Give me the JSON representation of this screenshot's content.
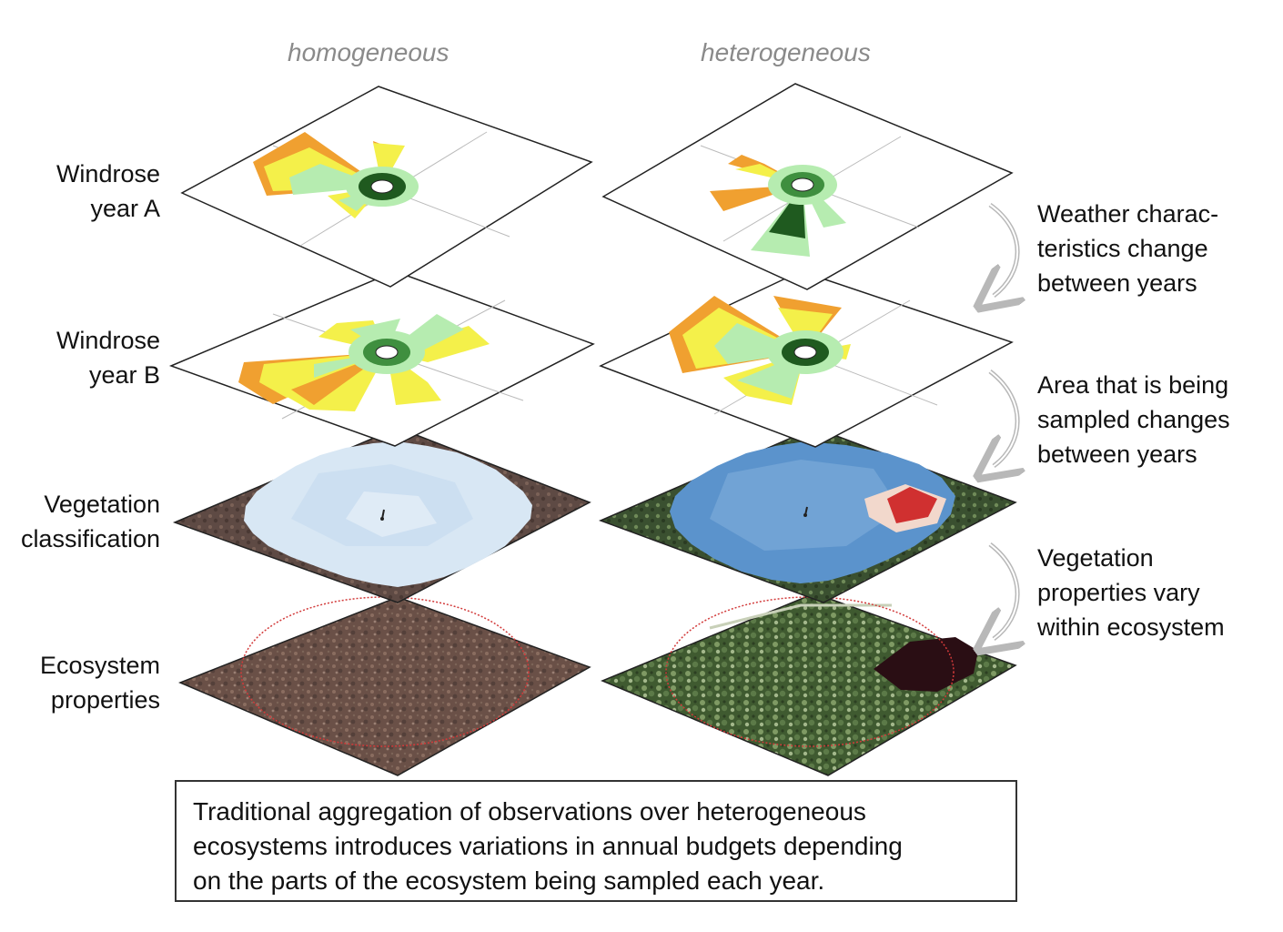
{
  "columns": [
    "homogeneous",
    "heterogeneous"
  ],
  "rows": [
    {
      "line1": "Windrose",
      "line2": "year A"
    },
    {
      "line1": "Windrose",
      "line2": "year B"
    },
    {
      "line1": "Vegetation",
      "line2": "classification"
    },
    {
      "line1": "Ecosystem",
      "line2": "properties"
    }
  ],
  "notes": [
    {
      "line1": "Weather charac-",
      "line2": "teristics change",
      "line3": "between years"
    },
    {
      "line1": "Area that is being",
      "line2": "sampled changes",
      "line3": "between years"
    },
    {
      "line1": "Vegetation",
      "line2": "properties vary",
      "line3": "within ecosystem"
    }
  ],
  "caption": {
    "line1": "Traditional aggregation of observations over heterogeneous",
    "line2": "ecosystems introduces variations in annual budgets depending",
    "line3": "on the parts of the ecosystem being sampled each year."
  },
  "colors": {
    "calm": "#1f5a1f",
    "low": "#3f8f3f",
    "mid": "#b6ecb0",
    "high": "#f4f04a",
    "max": "#f0a030",
    "water_light": "#d7e6f3",
    "water_dark": "#5b93cc",
    "hotspot": "#d03030",
    "ground_homog": "#6a5047",
    "ground_heter": "#3f5a30",
    "buffer_circle": "#d23a3a"
  },
  "icons": [
    "rose-center-icon",
    "tower-icon",
    "curved-arrow-icon"
  ]
}
